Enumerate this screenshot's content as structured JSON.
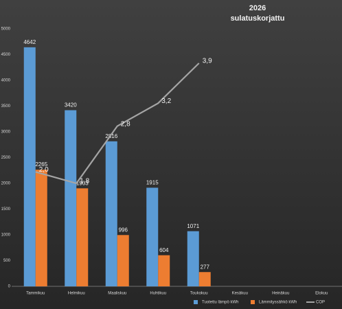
{
  "chart_data": {
    "type": "bar",
    "title": "2026",
    "subtitle": "sulatuskorjattu",
    "categories": [
      "Tammikuu",
      "Helmikuu",
      "Maaliskuu",
      "Huhtikuu",
      "Toukokuu",
      "Kesäkuu",
      "Heinäkuu",
      "Elokuu"
    ],
    "series": [
      {
        "name": "Tuotettu lämpö kWh",
        "color": "#5b9bd5",
        "values": [
          4642,
          3420,
          2816,
          1915,
          1071,
          null,
          null,
          null
        ]
      },
      {
        "name": "Lämmityssähkö kWh",
        "color": "#ed7d31",
        "values": [
          2265,
          1903,
          996,
          604,
          277,
          null,
          null,
          null
        ]
      },
      {
        "name": "COP",
        "type": "line",
        "axis": "y2",
        "color": "#a5a5a5",
        "values": [
          2.0,
          1.8,
          2.8,
          3.2,
          3.9,
          null,
          null,
          null
        ],
        "value_labels": [
          "2,0",
          "1,8",
          "2,8",
          "3,2",
          "3,9",
          null,
          null,
          null
        ]
      }
    ],
    "ylim": [
      0,
      5000
    ],
    "yticks": [
      0,
      500,
      1000,
      1500,
      2000,
      2500,
      3000,
      3500,
      4000,
      4500,
      5000
    ],
    "y2lim": [
      0,
      4.5
    ],
    "grid": false,
    "legend": "bottom-right"
  }
}
